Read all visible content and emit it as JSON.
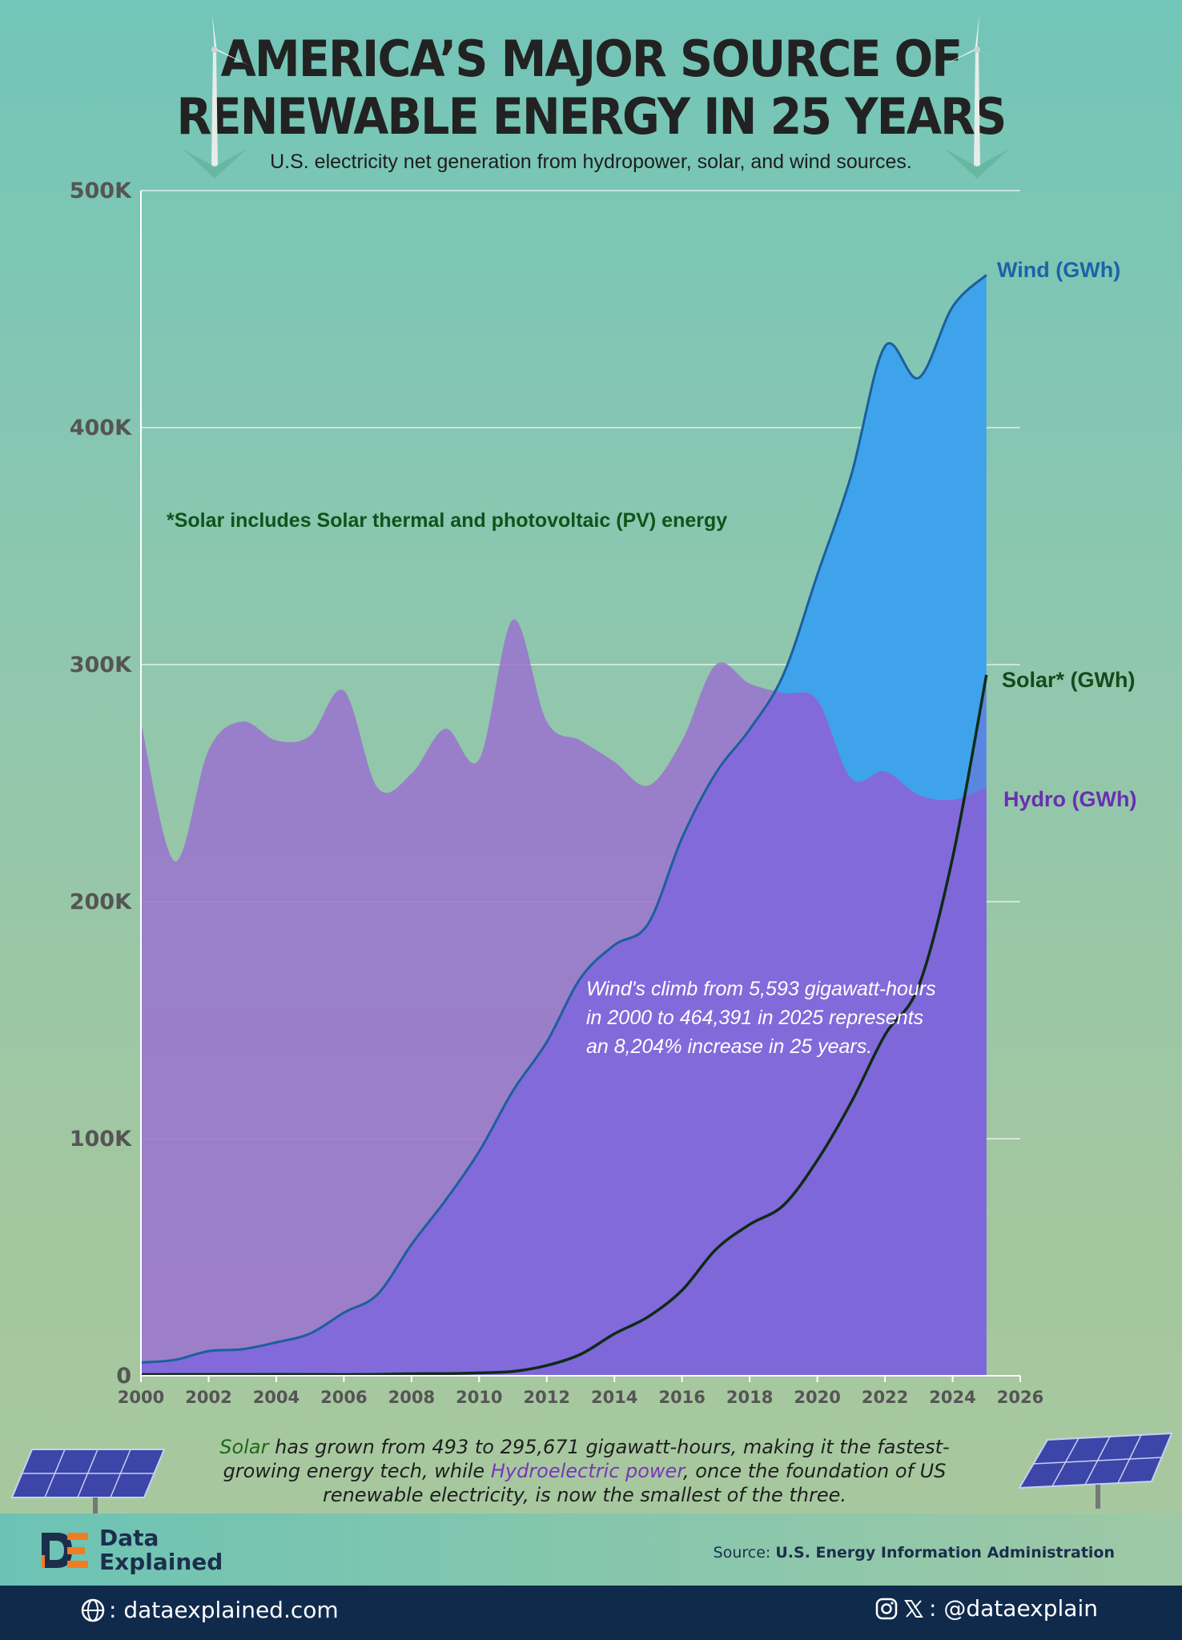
{
  "header": {
    "title_line1": "AMERICA’S MAJOR SOURCE OF",
    "title_line2": "RENEWABLE ENERGY IN 25 YEARS",
    "subtitle": "U.S. electricity net generation from hydropower, solar, and wind sources."
  },
  "chart_data": {
    "type": "area",
    "x": [
      2000,
      2001,
      2002,
      2003,
      2004,
      2005,
      2006,
      2007,
      2008,
      2009,
      2010,
      2011,
      2012,
      2013,
      2014,
      2015,
      2016,
      2017,
      2018,
      2019,
      2020,
      2021,
      2022,
      2023,
      2024,
      2025
    ],
    "xlim": [
      2000,
      2026
    ],
    "xticks": [
      "2000",
      "2002",
      "2004",
      "2006",
      "2008",
      "2010",
      "2012",
      "2014",
      "2016",
      "2018",
      "2020",
      "2022",
      "2024",
      "2026"
    ],
    "ylim": [
      0,
      500000
    ],
    "yticks": [
      "0",
      "100K",
      "200K",
      "300K",
      "400K",
      "500K"
    ],
    "grid": true,
    "series": [
      {
        "name": "Hydro (GWh)",
        "color": "#9a72cf",
        "line": "#9a72cf",
        "values": [
          275573,
          217000,
          264000,
          276000,
          268000,
          270000,
          289000,
          248000,
          254000,
          273000,
          260000,
          319000,
          276000,
          268000,
          259000,
          249000,
          268000,
          300000,
          292000,
          288000,
          285000,
          252000,
          255000,
          245000,
          243000,
          248000
        ]
      },
      {
        "name": "Wind (GWh)",
        "color": "#3ea3ea",
        "line": "#1c5f9c",
        "values": [
          5593,
          6700,
          10400,
          11200,
          14100,
          17800,
          26600,
          34400,
          55400,
          73900,
          94600,
          120200,
          140800,
          167800,
          181700,
          190700,
          226900,
          254300,
          272700,
          295900,
          337900,
          379800,
          434300,
          421000,
          451000,
          464391
        ]
      },
      {
        "name": "Solar* (GWh)",
        "color": "#7b63d8",
        "line": "#0e2b16",
        "values": [
          493,
          540,
          555,
          530,
          575,
          550,
          510,
          610,
          860,
          890,
          1210,
          1820,
          4330,
          9040,
          17690,
          24890,
          36050,
          53290,
          63830,
          71940,
          90890,
          115310,
          143800,
          164500,
          218500,
          295671
        ]
      }
    ],
    "labels": {
      "wind": "Wind (GWh)",
      "solar": "Solar* (GWh)",
      "hydro": "Hydro (GWh)"
    },
    "note": "*Solar includes Solar thermal and photovoltaic (PV) energy",
    "annotation_lines": [
      "Wind's climb from 5,593 gigawatt-hours",
      "in 2000 to 464,391 in 2025 represents",
      "an 8,204% increase in 25 years."
    ]
  },
  "footer": {
    "solar_word": "Solar",
    "text1": " has grown from 493 to 295,671 gigawatt-hours, making it the fastest-growing energy tech, while ",
    "hydro_word": "Hydroelectric power",
    "text2": ", once the foundation of US renewable electricity, is now the smallest of the three.",
    "brand_line1": "Data",
    "brand_line2": "Explained",
    "source_label": "Source:",
    "source_name": "U.S. Energy Information Administration",
    "website": ": dataexplained.com",
    "social": ": @dataexplain"
  },
  "icons": [
    "wind-turbine-icon",
    "solar-panel-icon",
    "globe-icon",
    "instagram-icon",
    "x-icon",
    "data-explained-logo"
  ]
}
